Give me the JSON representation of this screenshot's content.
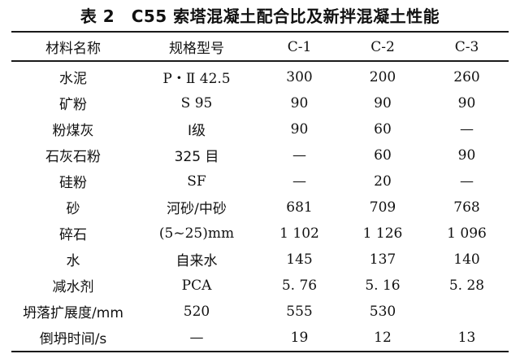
{
  "title": "表 2　C55 索塔混凝土配合比及新拌混凝土性能",
  "table": {
    "headers": [
      "材料名称",
      "规格型号",
      "C-1",
      "C-2",
      "C-3"
    ],
    "rows": [
      [
        "水泥",
        "P・Ⅱ 42.5",
        "300",
        "200",
        "260"
      ],
      [
        "矿粉",
        "S 95",
        "90",
        "90",
        "90"
      ],
      [
        "粉煤灰",
        "Ⅰ级",
        "90",
        "60",
        "—"
      ],
      [
        "石灰石粉",
        "325 目",
        "—",
        "60",
        "90"
      ],
      [
        "硅粉",
        "SF",
        "—",
        "20",
        "—"
      ],
      [
        "砂",
        "河砂/中砂",
        "681",
        "709",
        "768"
      ],
      [
        "碎石",
        "(5~25)mm",
        "1 102",
        "1 126",
        "1 096"
      ],
      [
        "水",
        "自来水",
        "145",
        "137",
        "140"
      ],
      [
        "减水剂",
        "PCA",
        "5. 76",
        "5. 16",
        "5. 28"
      ],
      [
        "坍落扩展度/mm",
        "520",
        "555",
        "530",
        ""
      ],
      [
        "倒坍时间/s",
        "—",
        "19",
        "12",
        "13"
      ]
    ]
  }
}
